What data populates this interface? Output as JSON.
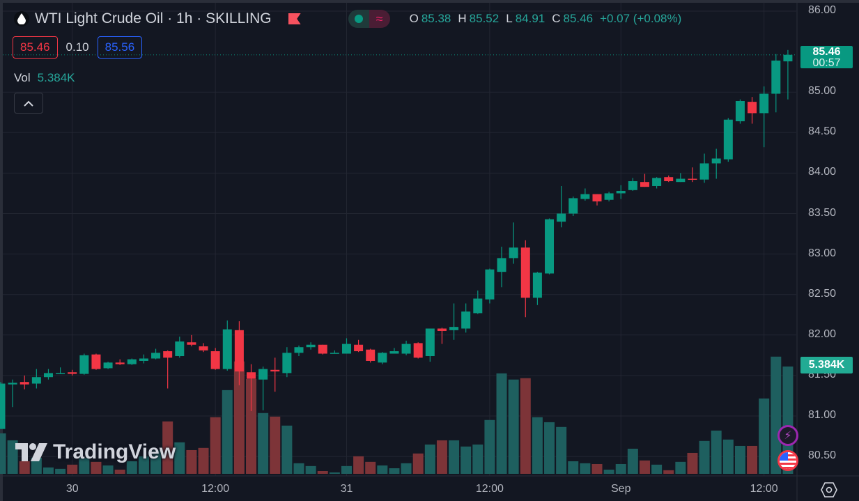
{
  "header": {
    "title": "WTI Light Crude Oil · 1h · SKILLING",
    "ohlc": {
      "o_label": "O",
      "o": "85.38",
      "h_label": "H",
      "h": "85.52",
      "l_label": "L",
      "l": "84.91",
      "c_label": "C",
      "c": "85.46",
      "change": "+0.07 (+0.08%)"
    },
    "sell_price": "85.46",
    "spread": "0.10",
    "buy_price": "85.56",
    "vol_label": "Vol",
    "vol_value": "5.384K",
    "collapse_icon": "chevron-up-icon"
  },
  "price_axis": [
    "86.00",
    "85.00",
    "84.50",
    "84.00",
    "83.50",
    "83.00",
    "82.50",
    "82.00",
    "81.50",
    "81.00",
    "80.50"
  ],
  "last_price": {
    "price": "85.46",
    "countdown": "00:57"
  },
  "last_volume": "5.384K",
  "time_axis": [
    {
      "label": "30",
      "index": 6
    },
    {
      "label": "12:00",
      "index": 18
    },
    {
      "label": "31",
      "index": 29
    },
    {
      "label": "12:00",
      "index": 41
    },
    {
      "label": "Sep",
      "index": 52
    },
    {
      "label": "12:00",
      "index": 64
    }
  ],
  "watermark": "TradingView",
  "colors": {
    "up": "#089981",
    "down": "#f23645",
    "vol_up": "#1e5f5f",
    "vol_down": "#7d3438",
    "bg": "#131722",
    "grid": "#232632"
  },
  "chart_data": {
    "type": "candlestick",
    "title": "WTI Light Crude Oil · 1h",
    "ylim": [
      80.2,
      86.0
    ],
    "volume_unit": "K",
    "candles": [
      [
        80.84,
        81.4,
        81.42,
        80.84,
        2.03
      ],
      [
        81.39,
        81.41,
        81.45,
        81.11,
        1.68
      ],
      [
        81.42,
        81.39,
        81.5,
        81.33,
        0.63
      ],
      [
        81.4,
        81.48,
        81.58,
        81.34,
        0.81
      ],
      [
        81.48,
        81.53,
        81.58,
        81.45,
        0.32
      ],
      [
        81.52,
        81.53,
        81.6,
        81.52,
        0.25
      ],
      [
        81.54,
        81.52,
        81.57,
        81.5,
        0.46
      ],
      [
        81.52,
        81.75,
        81.77,
        81.51,
        0.81
      ],
      [
        81.76,
        81.58,
        81.77,
        81.57,
        0.6
      ],
      [
        81.59,
        81.66,
        81.67,
        81.58,
        0.42
      ],
      [
        81.66,
        81.64,
        81.7,
        81.63,
        0.21
      ],
      [
        81.64,
        81.7,
        81.71,
        81.63,
        0.63
      ],
      [
        81.68,
        81.71,
        81.76,
        81.65,
        0.88
      ],
      [
        81.71,
        81.78,
        81.83,
        81.7,
        1.19
      ],
      [
        81.8,
        81.72,
        81.81,
        81.34,
        2.63
      ],
      [
        81.74,
        81.92,
        81.98,
        81.72,
        1.58
      ],
      [
        81.91,
        81.88,
        82.0,
        81.86,
        1.19
      ],
      [
        81.86,
        81.81,
        81.9,
        81.79,
        1.3
      ],
      [
        81.8,
        81.58,
        81.84,
        81.57,
        2.84
      ],
      [
        81.58,
        82.07,
        82.18,
        81.56,
        4.2
      ],
      [
        82.06,
        81.55,
        82.17,
        81.38,
        5.64
      ],
      [
        81.54,
        81.46,
        81.64,
        81.06,
        4.76
      ],
      [
        81.45,
        81.58,
        81.61,
        81.07,
        3.05
      ],
      [
        81.57,
        81.55,
        81.72,
        81.3,
        2.87
      ],
      [
        81.53,
        81.78,
        81.85,
        81.48,
        2.42
      ],
      [
        81.78,
        81.85,
        81.87,
        81.74,
        0.53
      ],
      [
        81.85,
        81.88,
        81.91,
        81.82,
        0.39
      ],
      [
        81.88,
        81.77,
        81.88,
        81.76,
        0.14
      ],
      [
        81.77,
        81.78,
        81.81,
        81.77,
        0.07
      ],
      [
        81.77,
        81.89,
        81.96,
        81.77,
        0.39
      ],
      [
        81.88,
        81.8,
        81.94,
        81.79,
        0.88
      ],
      [
        81.82,
        81.68,
        81.83,
        81.66,
        0.6
      ],
      [
        81.66,
        81.78,
        81.79,
        81.64,
        0.42
      ],
      [
        81.77,
        81.8,
        81.84,
        81.77,
        0.28
      ],
      [
        81.77,
        81.89,
        81.93,
        81.75,
        0.53
      ],
      [
        81.9,
        81.72,
        81.91,
        81.71,
        1.02
      ],
      [
        81.74,
        82.08,
        82.08,
        81.67,
        1.47
      ],
      [
        82.08,
        82.05,
        82.09,
        81.89,
        1.68
      ],
      [
        82.06,
        82.1,
        82.39,
        81.94,
        1.68
      ],
      [
        82.08,
        82.29,
        82.39,
        82.03,
        1.37
      ],
      [
        82.27,
        82.45,
        82.55,
        82.26,
        1.47
      ],
      [
        82.44,
        82.81,
        82.82,
        82.39,
        2.7
      ],
      [
        82.78,
        82.95,
        83.09,
        82.59,
        5.04
      ],
      [
        82.95,
        83.08,
        83.39,
        82.88,
        4.73
      ],
      [
        83.08,
        82.46,
        83.17,
        82.22,
        4.8
      ],
      [
        82.46,
        82.77,
        82.78,
        82.37,
        2.84
      ],
      [
        82.76,
        83.43,
        83.44,
        82.75,
        2.59
      ],
      [
        83.4,
        83.5,
        83.84,
        83.33,
        2.35
      ],
      [
        83.5,
        83.69,
        83.71,
        83.47,
        0.63
      ],
      [
        83.68,
        83.74,
        83.81,
        83.66,
        0.53
      ],
      [
        83.74,
        83.65,
        83.74,
        83.6,
        0.49
      ],
      [
        83.67,
        83.75,
        83.77,
        83.65,
        0.21
      ],
      [
        83.75,
        83.78,
        83.85,
        83.68,
        0.49
      ],
      [
        83.79,
        83.9,
        83.94,
        83.78,
        1.26
      ],
      [
        83.89,
        83.83,
        83.99,
        83.83,
        0.67
      ],
      [
        83.84,
        83.94,
        83.95,
        83.81,
        0.46
      ],
      [
        83.95,
        83.9,
        83.97,
        83.89,
        0.18
      ],
      [
        83.89,
        83.93,
        84.0,
        83.89,
        0.6
      ],
      [
        83.93,
        83.92,
        84.07,
        83.89,
        1.05
      ],
      [
        83.92,
        84.12,
        84.24,
        83.88,
        1.65
      ],
      [
        84.12,
        84.18,
        84.3,
        83.93,
        2.17
      ],
      [
        84.17,
        84.66,
        84.68,
        84.14,
        1.72
      ],
      [
        84.64,
        84.89,
        84.91,
        84.61,
        1.4
      ],
      [
        84.88,
        84.74,
        84.94,
        84.61,
        1.4
      ],
      [
        84.74,
        84.98,
        85.07,
        84.32,
        3.78
      ],
      [
        84.98,
        85.39,
        85.47,
        84.75,
        5.88
      ],
      [
        85.38,
        85.46,
        85.52,
        84.91,
        5.384
      ]
    ],
    "candle_fields": [
      "open",
      "close",
      "high",
      "low",
      "volume"
    ]
  }
}
